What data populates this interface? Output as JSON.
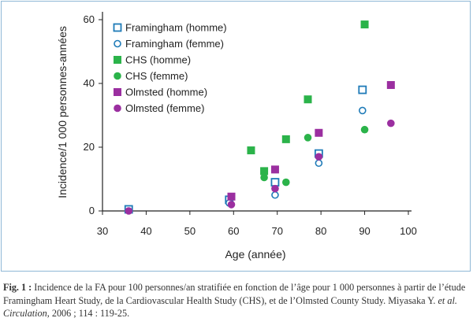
{
  "chart_data": {
    "type": "scatter",
    "xlabel": "Age (année)",
    "ylabel": "Incidence/1 000 personnes-années",
    "xlim": [
      30,
      100
    ],
    "ylim": [
      0,
      60
    ],
    "xticks": [
      "30",
      "40",
      "50",
      "60",
      "70",
      "80",
      "90",
      "100"
    ],
    "yticks": [
      "0",
      "20",
      "40",
      "60"
    ],
    "legend_position": "top-left",
    "series": [
      {
        "name": "Framingham (homme)",
        "marker": "square-open",
        "color": "#1f7bb8",
        "x": [
          36,
          59,
          69.5,
          79.5,
          89.5
        ],
        "y": [
          0.5,
          3.5,
          9,
          18,
          38
        ]
      },
      {
        "name": "Framingham (femme)",
        "marker": "circle-open",
        "color": "#1f7bb8",
        "x": [
          59,
          69.5,
          79.5,
          89.5
        ],
        "y": [
          2.5,
          5,
          15,
          31.5
        ]
      },
      {
        "name": "CHS (homme)",
        "marker": "square-filled",
        "color": "#2bb34a",
        "x": [
          64,
          67,
          72,
          77,
          90
        ],
        "y": [
          19,
          12.5,
          22.5,
          35,
          58.5
        ]
      },
      {
        "name": "CHS (femme)",
        "marker": "circle-filled",
        "color": "#2bb34a",
        "x": [
          67,
          72,
          77,
          90
        ],
        "y": [
          10.5,
          9,
          23,
          25.5
        ]
      },
      {
        "name": "Olmsted (homme)",
        "marker": "square-filled",
        "color": "#9b2fa0",
        "x": [
          59.5,
          69.5,
          79.5,
          96
        ],
        "y": [
          4.5,
          13,
          24.5,
          39.5
        ]
      },
      {
        "name": "Olmsted (femme)",
        "marker": "circle-filled",
        "color": "#9b2fa0",
        "x": [
          36,
          59.5,
          69.5,
          79.5,
          96
        ],
        "y": [
          0,
          2,
          7,
          17,
          27.5
        ]
      }
    ]
  },
  "caption": {
    "fig_label": "Fig. 1 :",
    "text_main": " Incidence de la FA pour 100 personnes/an stratifiée en fonction de l’âge pour 1 000 personnes à partir de l’étude Framingham Heart Study, de la Cardiovascular Health Study (CHS), et de l’Olmsted County Study. Miyasaka Y. ",
    "text_italic": "et al. Circulation",
    "text_tail": ", 2006 ; 114 : 119-25."
  },
  "colors": {
    "frame": "#8fb8d6",
    "axis": "#222222"
  }
}
